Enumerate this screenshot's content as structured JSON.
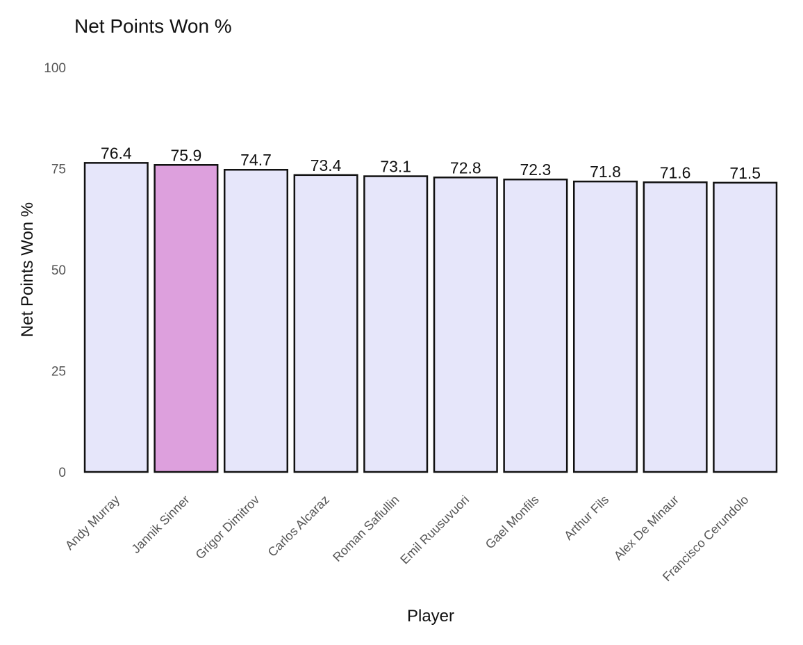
{
  "chart_data": {
    "type": "bar",
    "title": "Net Points Won %",
    "xlabel": "Player",
    "ylabel": "Net Points Won %",
    "ylim": [
      0,
      100
    ],
    "yticks": [
      0,
      25,
      50,
      75,
      100
    ],
    "grid": false,
    "categories": [
      "Andy Murray",
      "Jannik Sinner",
      "Grigor Dimitrov",
      "Carlos Alcaraz",
      "Roman Safiullin",
      "Emil Ruusuvuori",
      "Gael Monfils",
      "Arthur Fils",
      "Alex De Minaur",
      "Francisco Cerundolo"
    ],
    "values": [
      76.4,
      75.9,
      74.7,
      73.4,
      73.1,
      72.8,
      72.3,
      71.8,
      71.6,
      71.5
    ],
    "value_labels": [
      "76.4",
      "75.9",
      "74.7",
      "73.4",
      "73.1",
      "72.8",
      "72.3",
      "71.8",
      "71.6",
      "71.5"
    ],
    "highlight_category": "Jannik Sinner",
    "colors": {
      "bar_fill": "#e6e6fa",
      "highlight_fill": "#dda0dd",
      "bar_outline": "#111111"
    }
  }
}
